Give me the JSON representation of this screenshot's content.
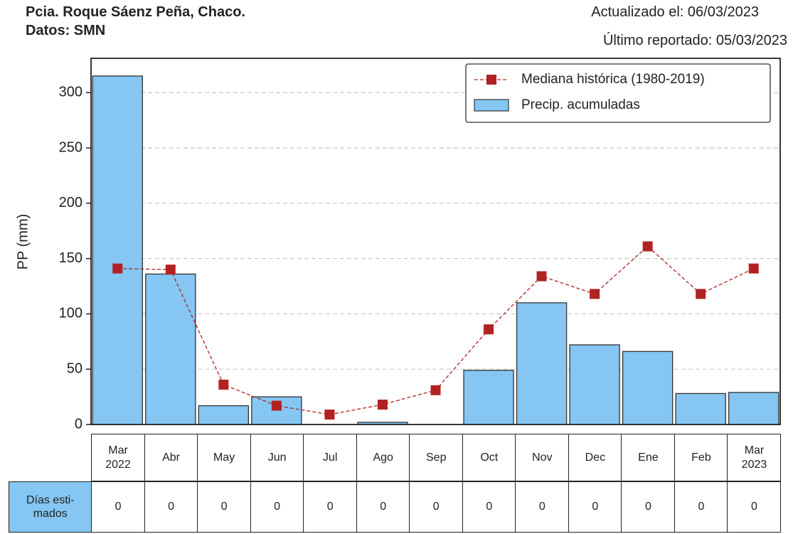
{
  "chart_data": {
    "type": "bar",
    "title": "Pcia. Roque Sáenz Peña, Chaco.",
    "subtitle": "Datos: SMN",
    "updated": "Actualizado el: 06/03/2023",
    "last_reported": "Último reportado: 05/03/2023",
    "y_label": "PP (mm)",
    "categories": [
      "Mar\n2022",
      "Abr",
      "May",
      "Jun",
      "Jul",
      "Ago",
      "Sep",
      "Oct",
      "Nov",
      "Dec",
      "Ene",
      "Feb",
      "Mar\n2023"
    ],
    "series": [
      {
        "name": "Precip. acumuladas",
        "color": "#85c6f2",
        "values": [
          315,
          136,
          17,
          25,
          0,
          2,
          0,
          49,
          110,
          72,
          66,
          28,
          29
        ]
      },
      {
        "name": "Mediana histórica (1980-2019)",
        "type": "line",
        "color": "#b22222",
        "values": [
          141,
          140,
          36,
          17,
          9,
          18,
          31,
          86,
          134,
          118,
          161,
          118,
          141
        ]
      }
    ],
    "ylim": [
      0,
      331
    ],
    "yticks": [
      0,
      50,
      100,
      150,
      200,
      250,
      300
    ],
    "grid": true,
    "legend": "upper right",
    "table": {
      "row_label": "Días esti-\nmados",
      "values": [
        0,
        0,
        0,
        0,
        0,
        0,
        0,
        0,
        0,
        0,
        0,
        0,
        0
      ]
    }
  }
}
